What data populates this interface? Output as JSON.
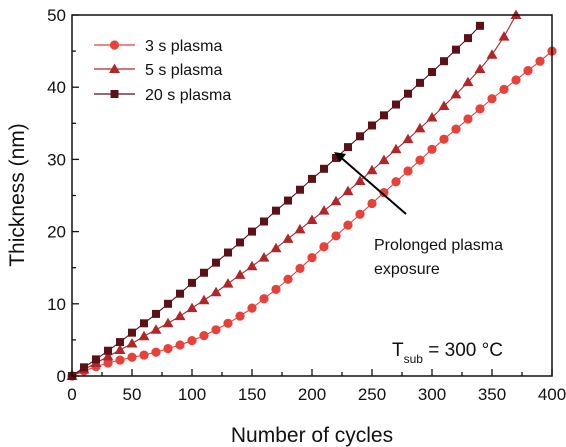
{
  "chart_data": {
    "type": "line",
    "xlabel": "Number of cycles",
    "ylabel": "Thickness (nm)",
    "xlim": [
      0,
      400
    ],
    "ylim": [
      0,
      50
    ],
    "xticks": [
      0,
      50,
      100,
      150,
      200,
      250,
      300,
      350,
      400
    ],
    "yticks": [
      0,
      10,
      20,
      30,
      40,
      50
    ],
    "grid": false,
    "legend_position": "top-left",
    "series": [
      {
        "name": "3 s plasma",
        "marker": "circle",
        "color": "#e8413a",
        "x": [
          0,
          10,
          20,
          30,
          40,
          50,
          60,
          70,
          80,
          90,
          100,
          110,
          120,
          130,
          140,
          150,
          160,
          170,
          180,
          190,
          200,
          210,
          220,
          230,
          240,
          250,
          260,
          270,
          280,
          290,
          300,
          310,
          320,
          330,
          340,
          350,
          360,
          370,
          380,
          390,
          400
        ],
        "y": [
          0,
          0.7,
          1.3,
          1.8,
          2.2,
          2.6,
          2.9,
          3.3,
          3.8,
          4.3,
          4.9,
          5.6,
          6.4,
          7.3,
          8.3,
          9.4,
          10.7,
          12.0,
          13.4,
          14.9,
          16.4,
          17.9,
          19.4,
          20.9,
          22.4,
          23.9,
          25.4,
          26.9,
          28.4,
          29.9,
          31.4,
          32.8,
          34.2,
          35.6,
          37.0,
          38.4,
          39.7,
          41.0,
          42.3,
          43.6,
          45.0
        ]
      },
      {
        "name": "5 s plasma",
        "marker": "triangle",
        "color": "#b0272a",
        "x": [
          0,
          10,
          20,
          30,
          40,
          50,
          60,
          70,
          80,
          90,
          100,
          110,
          120,
          130,
          140,
          150,
          160,
          170,
          180,
          190,
          200,
          210,
          220,
          230,
          240,
          250,
          260,
          270,
          280,
          290,
          300,
          310,
          320,
          330,
          340,
          350,
          360,
          370
        ],
        "y": [
          0,
          0.9,
          1.8,
          2.7,
          3.6,
          4.5,
          5.5,
          6.4,
          7.3,
          8.3,
          9.4,
          10.5,
          11.6,
          12.8,
          14.0,
          15.2,
          16.4,
          17.7,
          19.0,
          20.3,
          21.6,
          22.9,
          24.2,
          25.6,
          27.0,
          28.5,
          29.9,
          31.4,
          32.8,
          34.3,
          35.8,
          37.4,
          39.0,
          40.7,
          42.5,
          44.5,
          47.0,
          50.0
        ]
      },
      {
        "name": "20 s plasma",
        "marker": "square",
        "color": "#5c1116",
        "x": [
          0,
          10,
          20,
          30,
          40,
          50,
          60,
          70,
          80,
          90,
          100,
          110,
          120,
          130,
          140,
          150,
          160,
          170,
          180,
          190,
          200,
          210,
          220,
          230,
          240,
          250,
          260,
          270,
          280,
          290,
          300,
          310,
          320,
          330,
          340
        ],
        "y": [
          0,
          1.2,
          2.3,
          3.5,
          4.7,
          6.0,
          7.3,
          8.6,
          10.0,
          11.4,
          12.9,
          14.3,
          15.7,
          17.1,
          18.5,
          20.0,
          21.4,
          22.9,
          24.3,
          25.8,
          27.3,
          28.7,
          30.2,
          31.7,
          33.2,
          34.7,
          36.1,
          37.6,
          39.1,
          40.6,
          42.1,
          43.6,
          45.2,
          46.8,
          48.5
        ]
      }
    ],
    "annotations": [
      {
        "text_line1": "Prolonged plasma",
        "text_line2": "exposure",
        "arrow_to_x": 215,
        "arrow_to_y": 31.5
      }
    ],
    "condition": {
      "main": "T",
      "sub": "sub",
      "rest": " = 300 °C"
    }
  }
}
